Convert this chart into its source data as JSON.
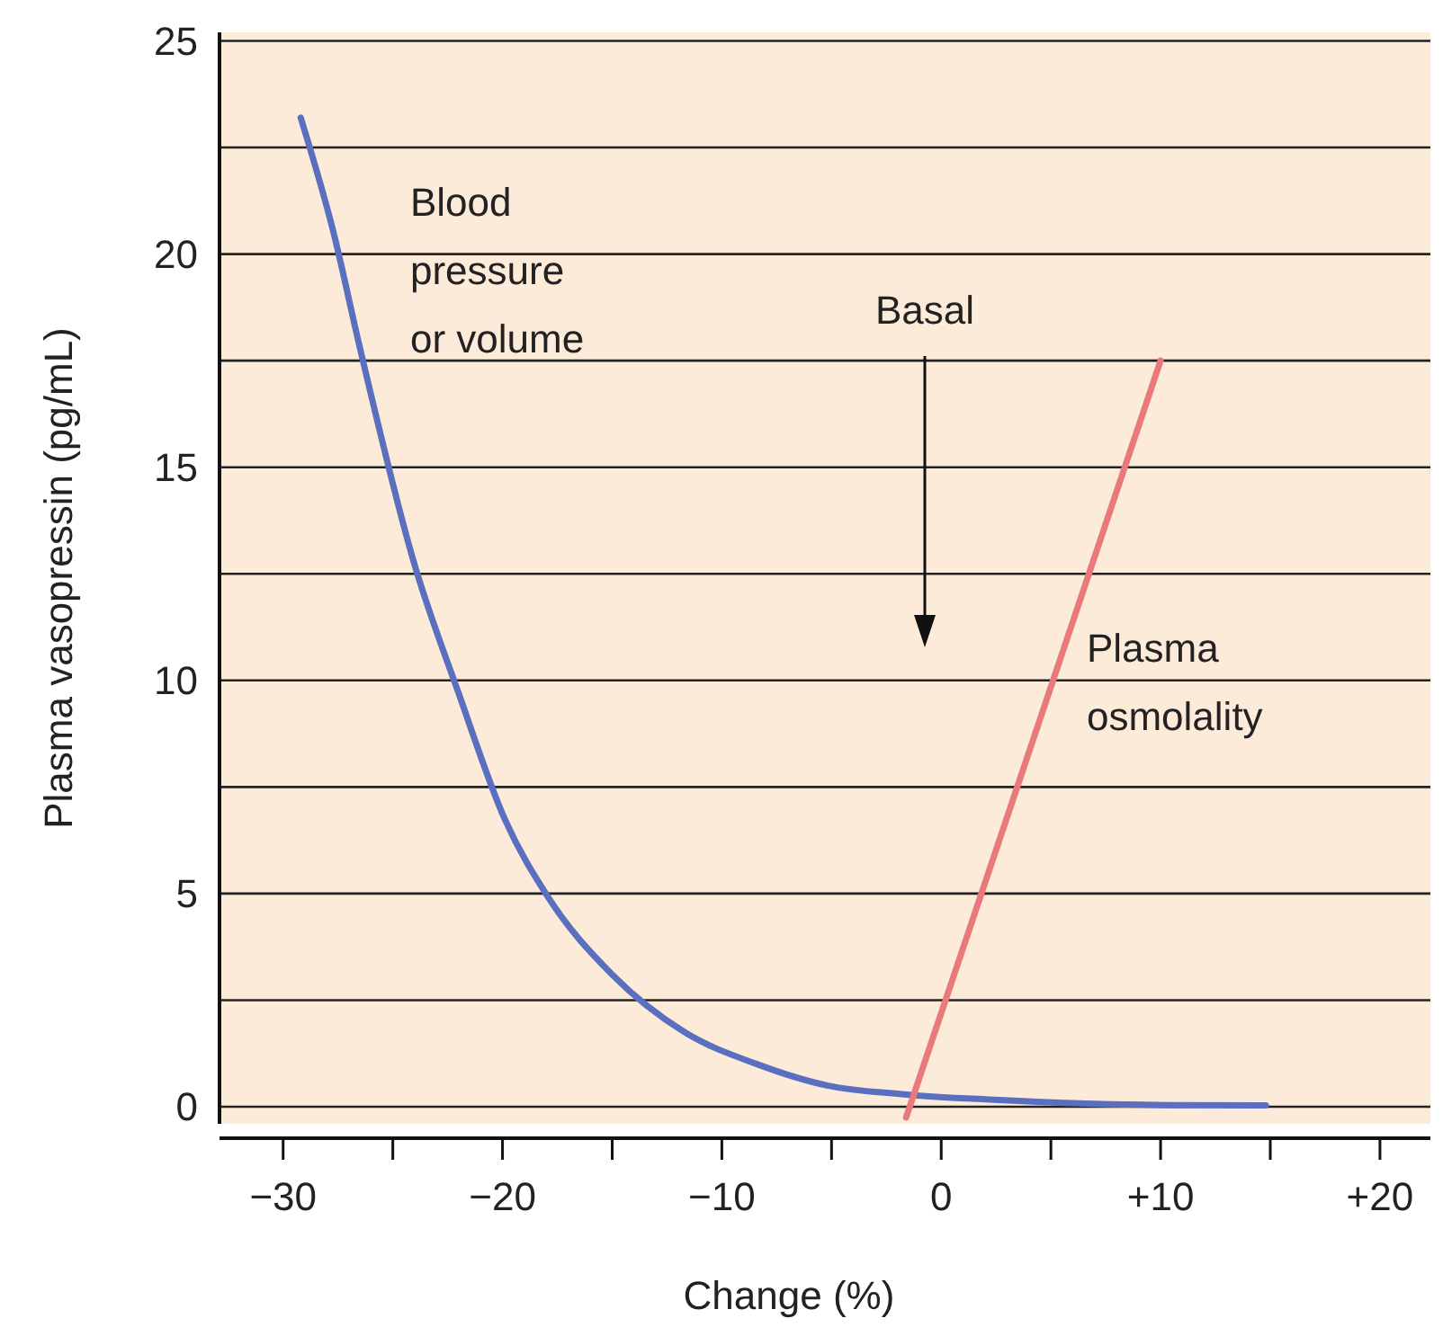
{
  "chart_data": {
    "type": "line",
    "xlabel": "Change (%)",
    "ylabel": "Plasma vasopressin (pg/mL)",
    "xlim": [
      -32.9,
      22.3
    ],
    "ylim": [
      -0.4,
      25.2
    ],
    "xticks": [
      {
        "value": -30,
        "label": "−30"
      },
      {
        "value": -25,
        "label": null
      },
      {
        "value": -20,
        "label": "−20"
      },
      {
        "value": -15,
        "label": null
      },
      {
        "value": -10,
        "label": "−10"
      },
      {
        "value": -5,
        "label": null
      },
      0,
      {
        "value": 5,
        "label": null
      },
      {
        "value": 10,
        "label": "+10"
      },
      {
        "value": 15,
        "label": null
      },
      {
        "value": 20,
        "label": "+20"
      }
    ],
    "yticks": [
      0,
      {
        "value": 2.5,
        "label": null
      },
      5,
      {
        "value": 7.5,
        "label": null
      },
      10,
      {
        "value": 12.5,
        "label": null
      },
      15,
      {
        "value": 17.5,
        "label": null
      },
      20,
      {
        "value": 22.5,
        "label": null
      },
      25
    ],
    "grid": "y",
    "marker": "none",
    "line_style": "solid",
    "series": [
      {
        "name": "Blood pressure or volume",
        "color": "#5a6fc0",
        "x": [
          -29.2,
          -27.7,
          -26.5,
          -24,
          -22,
          -19.9,
          -17.9,
          -15,
          -11.7,
          -8.4,
          -5.2,
          -1.9,
          2.2,
          6.3,
          10.4,
          14.8
        ],
        "values": [
          23.2,
          20.5,
          17.8,
          12.7,
          9.7,
          6.75,
          4.9,
          3.1,
          1.75,
          1.0,
          0.5,
          0.3,
          0.17,
          0.08,
          0.04,
          0.03
        ]
      },
      {
        "name": "Plasma osmolality",
        "color": "#e87a7c",
        "x": [
          -1.6,
          10
        ],
        "values": [
          -0.25,
          17.5
        ]
      }
    ],
    "annotations": [
      "Basal"
    ]
  }
}
